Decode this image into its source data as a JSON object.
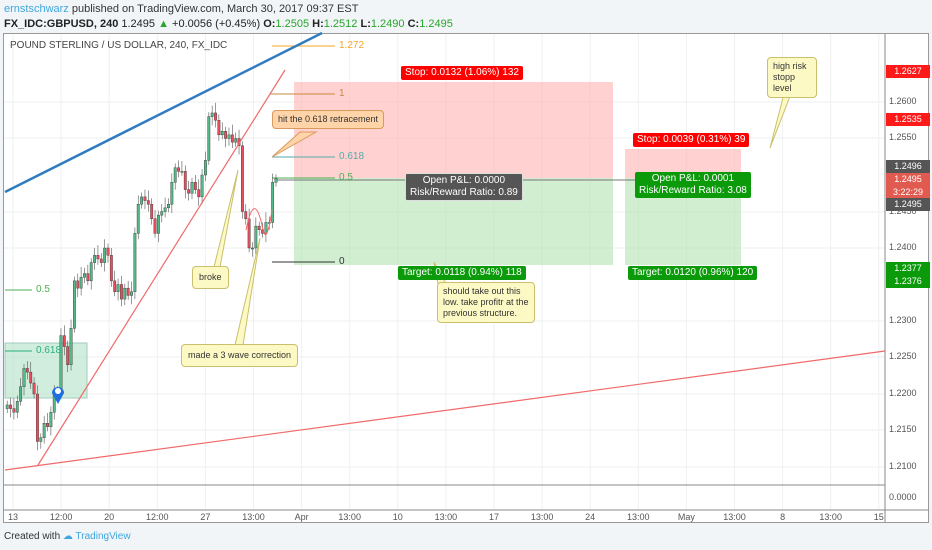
{
  "header": {
    "author": "ernstschwarz",
    "published": "published on TradingView.com, March 30, 2017 09:37 EST",
    "symbol": "FX_IDC:GBPUSD, 240",
    "last": "1.2495",
    "change": "+0.0056 (+0.45%)",
    "o_label": "O:",
    "o": "1.2505",
    "h_label": "H:",
    "h": "1.2512",
    "l_label": "L:",
    "l": "1.2490",
    "c_label": "C:",
    "c": "1.2495"
  },
  "chart_title": "POUND STERLING / US DOLLAR, 240, FX_IDC",
  "colors": {
    "up": "#53b987",
    "down": "#eb4d5c",
    "stop": "#ff0000",
    "target": "#00a000",
    "trend_blue": "#2f7cc1",
    "trend_red": "#f06a6a"
  },
  "price_labels": [
    "1.2600",
    "1.2550",
    "1.2450",
    "1.2400",
    "1.2300",
    "1.2250",
    "1.2200",
    "1.2150",
    "1.2100"
  ],
  "sub_pane_label": "0.0000",
  "price_tags": [
    {
      "v": "1.2627",
      "c": "#ff1a1a"
    },
    {
      "v": "1.2535",
      "c": "#ff1a1a"
    },
    {
      "v": "1.2496",
      "c": "#555555"
    },
    {
      "v": "1.2495",
      "c": "#e05a4f"
    },
    {
      "v": "3:22:29",
      "c": "#e05a4f"
    },
    {
      "v": "1.2495",
      "c": "#555555"
    },
    {
      "v": "1.2377",
      "c": "#0a9a0a"
    },
    {
      "v": "1.2376",
      "c": "#0a9a0a"
    }
  ],
  "x_labels": [
    "13",
    "12:00",
    "20",
    "12:00",
    "27",
    "13:00",
    "Apr",
    "13:00",
    "10",
    "13:00",
    "17",
    "13:00",
    "24",
    "13:00",
    "May",
    "13:00",
    "8",
    "13:00",
    "15"
  ],
  "fib_right": [
    "1.272",
    "1",
    "0.618",
    "0.5",
    "0"
  ],
  "fib_left": [
    "0.5",
    "0.618"
  ],
  "position1": {
    "stop": "Stop: 0.0132 (1.06%) 132",
    "pnl": "Open P&L: 0.0000",
    "rr": "Risk/Reward Ratio: 0.89",
    "target": "Target: 0.0118 (0.94%) 118"
  },
  "position2": {
    "stop": "Stop: 0.0039 (0.31%) 39",
    "pnl": "Open P&L: 0.0001",
    "rr": "Risk/Reward Ratio: 3.08",
    "target": "Target: 0.0120 (0.96%) 120"
  },
  "notes": {
    "retracement": "hit the 0.618 retracement",
    "broke": "broke",
    "wave": "made a 3 wave correction",
    "low": "should take out this low. take profitr at the previous structure.",
    "risk": "high risk stopp level"
  },
  "footer": {
    "created": "Created with",
    "brand": "TradingView"
  },
  "chart_data": {
    "type": "candlestick",
    "symbol": "GBPUSD",
    "interval": "240",
    "ylim": [
      1.2075,
      1.2675
    ],
    "closes": [
      1.2185,
      1.218,
      1.2175,
      1.219,
      1.221,
      1.2235,
      1.223,
      1.2215,
      1.22,
      1.2135,
      1.214,
      1.216,
      1.2155,
      1.2175,
      1.22,
      1.2205,
      1.228,
      1.2265,
      1.224,
      1.229,
      1.2355,
      1.2345,
      1.236,
      1.2365,
      1.2355,
      1.238,
      1.239,
      1.2385,
      1.238,
      1.24,
      1.239,
      1.2355,
      1.234,
      1.235,
      1.233,
      1.2345,
      1.2335,
      1.234,
      1.242,
      1.246,
      1.247,
      1.2465,
      1.246,
      1.244,
      1.242,
      1.2445,
      1.245,
      1.2455,
      1.246,
      1.249,
      1.251,
      1.2505,
      1.2505,
      1.248,
      1.2475,
      1.249,
      1.248,
      1.247,
      1.25,
      1.252,
      1.258,
      1.2585,
      1.2575,
      1.2555,
      1.256,
      1.255,
      1.2555,
      1.2545,
      1.255,
      1.254,
      1.245,
      1.244,
      1.24,
      1.24,
      1.243,
      1.2425,
      1.242,
      1.2435,
      1.2435,
      1.249,
      1.2495
    ]
  }
}
